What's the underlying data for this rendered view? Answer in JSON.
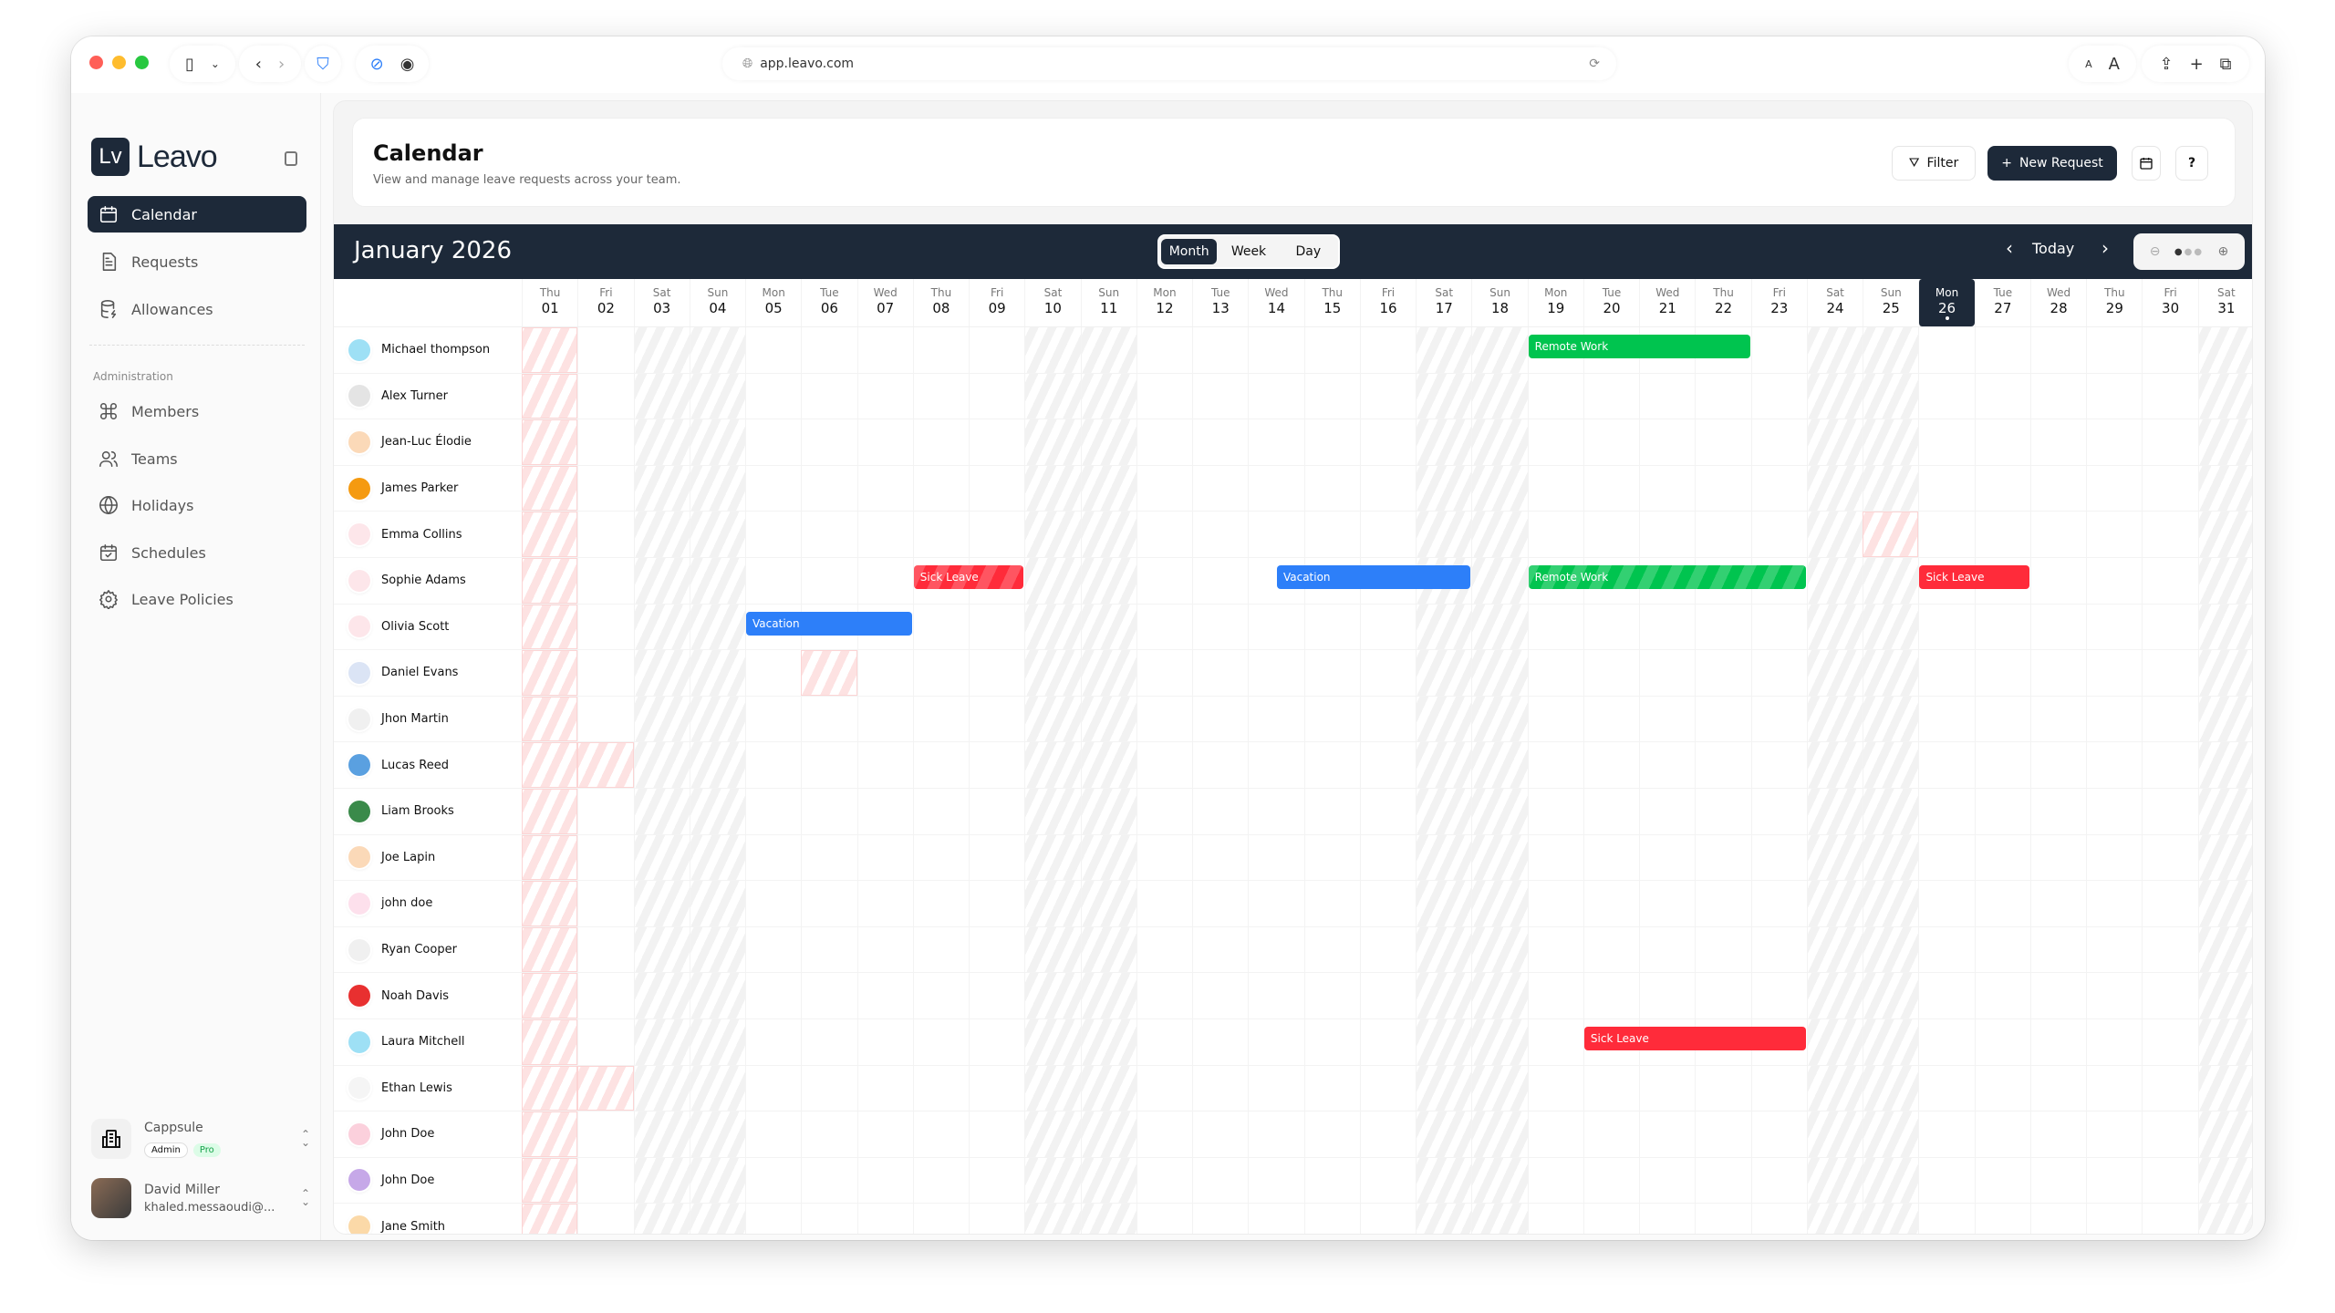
{
  "browser": {
    "url": "app.leavo.com",
    "text_small": "A",
    "text_large": "A"
  },
  "sidebar": {
    "logo_mark": "Lv",
    "logo_word": "Leavo",
    "items": [
      {
        "label": "Calendar",
        "icon": "calendar-icon",
        "active": true
      },
      {
        "label": "Requests",
        "icon": "file-text-icon"
      },
      {
        "label": "Allowances",
        "icon": "database-icon"
      }
    ],
    "section_label": "Administration",
    "admin_items": [
      {
        "label": "Members",
        "icon": "command-icon"
      },
      {
        "label": "Teams",
        "icon": "users-icon"
      },
      {
        "label": "Holidays",
        "icon": "globe-icon"
      },
      {
        "label": "Schedules",
        "icon": "calendar-check-icon"
      },
      {
        "label": "Leave Policies",
        "icon": "gear-icon"
      }
    ],
    "org": {
      "name": "Cappsule",
      "role": "Admin",
      "plan": "Pro"
    },
    "user": {
      "name": "David Miller",
      "email": "khaled.messaoudi@..."
    }
  },
  "header": {
    "title": "Calendar",
    "subtitle": "View and manage leave requests across your team.",
    "filter_label": "Filter",
    "new_request_label": "New Request",
    "help_label": "?"
  },
  "calendar": {
    "month_label": "January 2026",
    "views": [
      "Month",
      "Week",
      "Day"
    ],
    "active_view": "Month",
    "today_label": "Today",
    "today_day": 26,
    "days": [
      {
        "dow": "Thu",
        "d": "01"
      },
      {
        "dow": "Fri",
        "d": "02"
      },
      {
        "dow": "Sat",
        "d": "03"
      },
      {
        "dow": "Sun",
        "d": "04"
      },
      {
        "dow": "Mon",
        "d": "05"
      },
      {
        "dow": "Tue",
        "d": "06"
      },
      {
        "dow": "Wed",
        "d": "07"
      },
      {
        "dow": "Thu",
        "d": "08"
      },
      {
        "dow": "Fri",
        "d": "09"
      },
      {
        "dow": "Sat",
        "d": "10"
      },
      {
        "dow": "Sun",
        "d": "11"
      },
      {
        "dow": "Mon",
        "d": "12"
      },
      {
        "dow": "Tue",
        "d": "13"
      },
      {
        "dow": "Wed",
        "d": "14"
      },
      {
        "dow": "Thu",
        "d": "15"
      },
      {
        "dow": "Fri",
        "d": "16"
      },
      {
        "dow": "Sat",
        "d": "17"
      },
      {
        "dow": "Sun",
        "d": "18"
      },
      {
        "dow": "Mon",
        "d": "19"
      },
      {
        "dow": "Tue",
        "d": "20"
      },
      {
        "dow": "Wed",
        "d": "21"
      },
      {
        "dow": "Thu",
        "d": "22"
      },
      {
        "dow": "Fri",
        "d": "23"
      },
      {
        "dow": "Sat",
        "d": "24"
      },
      {
        "dow": "Sun",
        "d": "25"
      },
      {
        "dow": "Mon",
        "d": "26"
      },
      {
        "dow": "Tue",
        "d": "27"
      },
      {
        "dow": "Wed",
        "d": "28"
      },
      {
        "dow": "Thu",
        "d": "29"
      },
      {
        "dow": "Fri",
        "d": "30"
      },
      {
        "dow": "Sat",
        "d": "31"
      }
    ],
    "holiday_days": [
      1
    ],
    "colors": {
      "Remote Work": "#00c44f",
      "Sick Leave": "#ff2b3a",
      "Vacation": "#2d7ff9",
      "dark": "#1d2939"
    },
    "members": [
      {
        "name": "Michael thompson",
        "avatar_color": "#9ee0f5",
        "events": [
          {
            "type": "Remote Work",
            "start": 19,
            "end": 22
          }
        ]
      },
      {
        "name": "Alex Turner",
        "avatar_color": "#e4e4e4"
      },
      {
        "name": "Jean-Luc Élodie",
        "avatar_color": "#fbd9b8"
      },
      {
        "name": "James Parker",
        "avatar_color": "#f59a10"
      },
      {
        "name": "Emma Collins",
        "avatar_color": "#fde6ea",
        "pink_days": [
          25
        ]
      },
      {
        "name": "Sophie Adams",
        "avatar_color": "#fde6ea",
        "events": [
          {
            "type": "Sick Leave",
            "start": 8,
            "end": 9,
            "pending": true
          },
          {
            "type": "Vacation",
            "start": 14,
            "start_half": "pm",
            "end": 17
          },
          {
            "type": "Remote Work",
            "start": 19,
            "end": 23,
            "pending": true
          },
          {
            "type": "Sick Leave",
            "start": 26,
            "end": 27
          }
        ]
      },
      {
        "name": "Olivia Scott",
        "avatar_color": "#fde6ea",
        "events": [
          {
            "type": "Vacation",
            "start": 5,
            "end": 7
          }
        ]
      },
      {
        "name": "Daniel Evans",
        "avatar_color": "#dbe4f5",
        "pink_days": [
          6
        ]
      },
      {
        "name": "Jhon Martin",
        "avatar_color": "#f0f0f0"
      },
      {
        "name": "Lucas Reed",
        "avatar_color": "#5aa0e0",
        "pink_days": [
          2
        ]
      },
      {
        "name": "Liam Brooks",
        "avatar_color": "#3a8a4a"
      },
      {
        "name": "Joe Lapin",
        "avatar_color": "#fbd9b8"
      },
      {
        "name": "john doe",
        "avatar_color": "#fde0ec"
      },
      {
        "name": "Ryan Cooper",
        "avatar_color": "#f0f0f0"
      },
      {
        "name": "Noah Davis",
        "avatar_color": "#e83030"
      },
      {
        "name": "Laura Mitchell",
        "avatar_color": "#9ee0f5",
        "events": [
          {
            "type": "Sick Leave",
            "start": 20,
            "end": 23
          }
        ]
      },
      {
        "name": "Ethan Lewis",
        "avatar_color": "#f5f5f5",
        "pink_days": [
          2
        ]
      },
      {
        "name": "John Doe",
        "avatar_color": "#fbd0dc"
      },
      {
        "name": "John Doe",
        "avatar_color": "#c6a8e8"
      },
      {
        "name": "Jane Smith",
        "avatar_color": "#fbd9a8"
      }
    ]
  }
}
